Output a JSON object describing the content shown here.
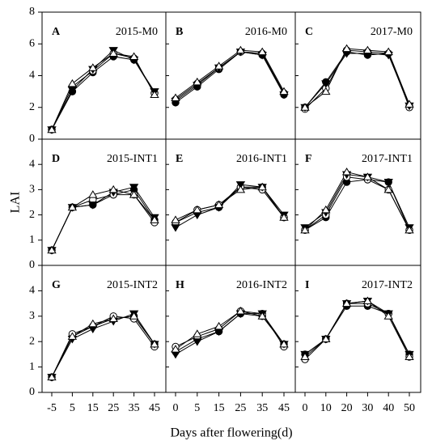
{
  "y_label": "LAI",
  "x_label": "Days after flowering(d)",
  "chart_data": [
    {
      "type": "line",
      "panel": "A",
      "title": "2015-M0",
      "ylim": [
        0,
        8
      ],
      "yticks": [
        0,
        2,
        4,
        6,
        8
      ],
      "series": [
        {
          "marker": "filled-circle",
          "color": "#000000",
          "values": [
            0.6,
            3.0,
            4.2,
            5.2,
            5.0,
            2.9
          ]
        },
        {
          "marker": "open-circle",
          "color": "#000000",
          "values": [
            0.6,
            3.3,
            4.3,
            5.4,
            5.1,
            2.9
          ]
        },
        {
          "marker": "filled-triangle-down",
          "color": "#000000",
          "values": [
            0.6,
            3.1,
            4.4,
            5.6,
            5.0,
            3.0
          ]
        },
        {
          "marker": "open-triangle-up",
          "color": "#000000",
          "values": [
            0.6,
            3.5,
            4.5,
            5.4,
            5.2,
            2.8
          ]
        }
      ]
    },
    {
      "type": "line",
      "panel": "B",
      "title": "2016-M0",
      "series": [
        {
          "marker": "filled-circle",
          "color": "#000000",
          "values": [
            2.3,
            3.3,
            4.4,
            5.5,
            5.3,
            2.8
          ]
        },
        {
          "marker": "open-circle",
          "color": "#000000",
          "values": [
            2.5,
            3.5,
            4.5,
            5.5,
            5.4,
            2.9
          ]
        },
        {
          "marker": "filled-triangle-down",
          "color": "#000000",
          "values": [
            2.4,
            3.4,
            4.5,
            5.5,
            5.3,
            2.8
          ]
        },
        {
          "marker": "open-triangle-up",
          "color": "#000000",
          "values": [
            2.6,
            3.6,
            4.6,
            5.6,
            5.5,
            3.0
          ]
        }
      ]
    },
    {
      "type": "line",
      "panel": "C",
      "title": "2017-M0",
      "series": [
        {
          "marker": "filled-circle",
          "color": "#000000",
          "values": [
            2.0,
            3.6,
            5.5,
            5.3,
            5.4,
            2.1
          ]
        },
        {
          "marker": "open-circle",
          "color": "#000000",
          "values": [
            1.9,
            3.2,
            5.6,
            5.5,
            5.4,
            2.0
          ]
        },
        {
          "marker": "filled-triangle-down",
          "color": "#000000",
          "values": [
            2.0,
            3.5,
            5.4,
            5.4,
            5.3,
            2.1
          ]
        },
        {
          "marker": "open-triangle-up",
          "color": "#000000",
          "values": [
            2.0,
            3.0,
            5.7,
            5.6,
            5.5,
            2.2
          ]
        }
      ]
    },
    {
      "type": "line",
      "panel": "D",
      "title": "2015-INT1",
      "ylim": [
        0,
        5
      ],
      "yticks": [
        0,
        1,
        2,
        3,
        4
      ],
      "series": [
        {
          "marker": "filled-circle",
          "color": "#000000",
          "values": [
            0.6,
            2.3,
            2.4,
            2.8,
            3.0,
            1.8
          ]
        },
        {
          "marker": "open-circle",
          "color": "#000000",
          "values": [
            0.6,
            2.3,
            2.6,
            2.8,
            2.8,
            1.7
          ]
        },
        {
          "marker": "filled-triangle-down",
          "color": "#000000",
          "values": [
            0.6,
            2.3,
            2.4,
            2.9,
            3.1,
            1.9
          ]
        },
        {
          "marker": "open-triangle-up",
          "color": "#000000",
          "values": [
            0.6,
            2.3,
            2.8,
            3.0,
            2.8,
            1.8
          ]
        }
      ]
    },
    {
      "type": "line",
      "panel": "E",
      "title": "2016-INT1",
      "series": [
        {
          "marker": "filled-circle",
          "color": "#000000",
          "values": [
            1.7,
            2.1,
            2.3,
            3.1,
            3.1,
            1.9
          ]
        },
        {
          "marker": "open-circle",
          "color": "#000000",
          "values": [
            1.7,
            2.2,
            2.4,
            3.1,
            3.0,
            1.9
          ]
        },
        {
          "marker": "filled-triangle-down",
          "color": "#000000",
          "values": [
            1.5,
            2.0,
            2.3,
            3.2,
            3.1,
            2.0
          ]
        },
        {
          "marker": "open-triangle-up",
          "color": "#000000",
          "values": [
            1.8,
            2.2,
            2.4,
            3.0,
            3.1,
            1.9
          ]
        }
      ]
    },
    {
      "type": "line",
      "panel": "F",
      "title": "2017-INT1",
      "series": [
        {
          "marker": "filled-circle",
          "color": "#000000",
          "values": [
            1.4,
            1.9,
            3.3,
            3.4,
            3.3,
            1.4
          ]
        },
        {
          "marker": "open-circle",
          "color": "#000000",
          "values": [
            1.4,
            2.0,
            3.5,
            3.4,
            3.0,
            1.4
          ]
        },
        {
          "marker": "filled-triangle-down",
          "color": "#000000",
          "values": [
            1.5,
            2.1,
            3.6,
            3.5,
            3.3,
            1.5
          ]
        },
        {
          "marker": "open-triangle-up",
          "color": "#000000",
          "values": [
            1.4,
            2.2,
            3.7,
            3.5,
            3.0,
            1.4
          ]
        }
      ]
    },
    {
      "type": "line",
      "panel": "G",
      "title": "2015-INT2",
      "ylim": [
        0,
        5
      ],
      "yticks": [
        0,
        1,
        2,
        3,
        4
      ],
      "categories": [
        "-5",
        "5",
        "15",
        "25",
        "35",
        "45"
      ],
      "series": [
        {
          "marker": "filled-circle",
          "color": "#000000",
          "values": [
            0.6,
            2.2,
            2.6,
            2.9,
            3.0,
            1.9
          ]
        },
        {
          "marker": "open-circle",
          "color": "#000000",
          "values": [
            0.6,
            2.3,
            2.6,
            3.0,
            2.9,
            1.8
          ]
        },
        {
          "marker": "filled-triangle-down",
          "color": "#000000",
          "values": [
            0.6,
            2.1,
            2.5,
            2.8,
            3.1,
            1.9
          ]
        },
        {
          "marker": "open-triangle-up",
          "color": "#000000",
          "values": [
            0.6,
            2.2,
            2.7,
            2.9,
            3.0,
            1.9
          ]
        }
      ]
    },
    {
      "type": "line",
      "panel": "H",
      "title": "2016-INT2",
      "categories": [
        "0",
        "5",
        "15",
        "25",
        "35",
        "45"
      ],
      "series": [
        {
          "marker": "filled-circle",
          "color": "#000000",
          "values": [
            1.6,
            2.1,
            2.4,
            3.1,
            3.0,
            1.9
          ]
        },
        {
          "marker": "open-circle",
          "color": "#000000",
          "values": [
            1.8,
            2.2,
            2.5,
            3.2,
            3.1,
            1.8
          ]
        },
        {
          "marker": "filled-triangle-down",
          "color": "#000000",
          "values": [
            1.5,
            2.0,
            2.4,
            3.1,
            3.1,
            1.9
          ]
        },
        {
          "marker": "open-triangle-up",
          "color": "#000000",
          "values": [
            1.7,
            2.3,
            2.6,
            3.2,
            3.0,
            1.9
          ]
        }
      ]
    },
    {
      "type": "line",
      "panel": "I",
      "title": "2017-INT2",
      "categories": [
        "0",
        "10",
        "20",
        "30",
        "40",
        "50"
      ],
      "series": [
        {
          "marker": "filled-circle",
          "color": "#000000",
          "values": [
            1.5,
            2.1,
            3.4,
            3.4,
            3.1,
            1.5
          ]
        },
        {
          "marker": "open-circle",
          "color": "#000000",
          "values": [
            1.3,
            2.1,
            3.5,
            3.5,
            3.1,
            1.4
          ]
        },
        {
          "marker": "filled-triangle-down",
          "color": "#000000",
          "values": [
            1.5,
            2.1,
            3.5,
            3.6,
            3.1,
            1.5
          ]
        },
        {
          "marker": "open-triangle-up",
          "color": "#000000",
          "values": [
            1.4,
            2.1,
            3.5,
            3.6,
            3.0,
            1.4
          ]
        }
      ]
    }
  ]
}
